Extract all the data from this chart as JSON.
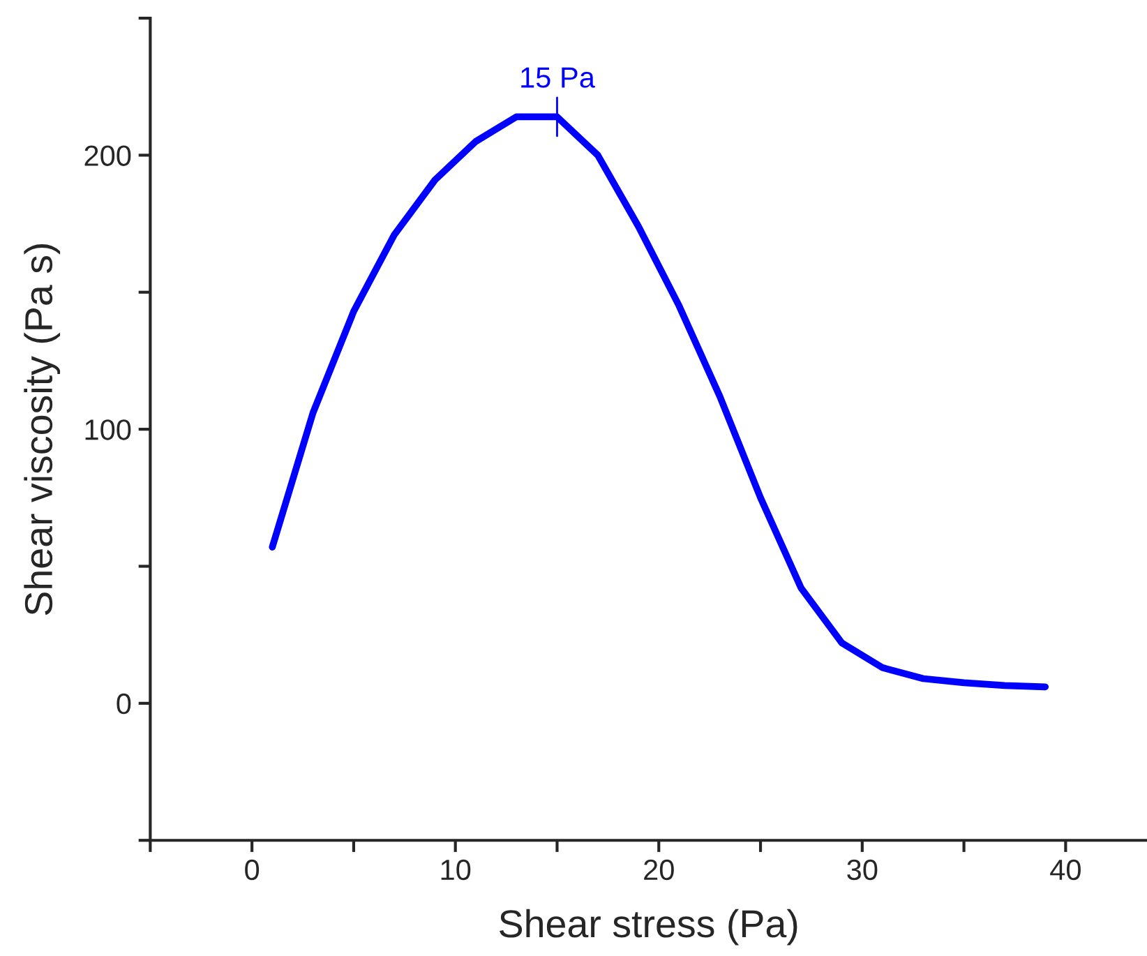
{
  "chart_data": {
    "type": "line",
    "xlabel": "Shear stress (Pa)",
    "ylabel": "Shear viscosity (Pa s)",
    "x": [
      1,
      3,
      5,
      7,
      9,
      11,
      13,
      15,
      17,
      19,
      21,
      23,
      25,
      27,
      29,
      31,
      33,
      35,
      37,
      39
    ],
    "series": [
      {
        "color": "#0000ff",
        "values": [
          57,
          106,
          143,
          171,
          191,
          205,
          214,
          214,
          200,
          174,
          145,
          112,
          75,
          42,
          22,
          13,
          9,
          7.5,
          6.5,
          6
        ]
      }
    ],
    "annotations": [
      {
        "text": "15 Pa",
        "x": 15,
        "y": 214
      }
    ],
    "xlim": [
      -5,
      44
    ],
    "ylim": [
      -50,
      250
    ],
    "xticks": [
      {
        "value": -5,
        "label": null
      },
      0,
      {
        "value": 5,
        "label": null
      },
      10,
      {
        "value": 15,
        "label": null
      },
      20,
      {
        "value": 25,
        "label": null
      },
      30,
      {
        "value": 35,
        "label": null
      },
      40
    ],
    "yticks": [
      {
        "value": -50,
        "label": null
      },
      0,
      {
        "value": 50,
        "label": null
      },
      100,
      {
        "value": 150,
        "label": null
      },
      200,
      {
        "value": 250,
        "label": null
      }
    ],
    "grid": false,
    "legend": false,
    "marker": "none",
    "line_style": "solid"
  }
}
